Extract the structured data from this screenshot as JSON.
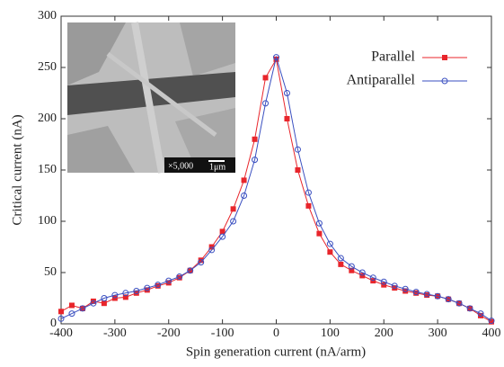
{
  "chart_data": {
    "type": "line",
    "xlabel": "Spin generation current (nA/arm)",
    "ylabel": "Critical current (nA)",
    "inset_labels": [
      "×5,000",
      "1μm"
    ],
    "x": [
      -400,
      -380,
      -360,
      -340,
      -320,
      -300,
      -280,
      -260,
      -240,
      -220,
      -200,
      -180,
      -160,
      -140,
      -120,
      -100,
      -80,
      -60,
      -40,
      -20,
      0,
      20,
      40,
      60,
      80,
      100,
      120,
      140,
      160,
      180,
      200,
      220,
      240,
      260,
      280,
      300,
      320,
      340,
      360,
      380,
      400
    ],
    "series": [
      {
        "name": "Parallel",
        "color": "#e8252b",
        "marker": "square",
        "values": [
          12,
          18,
          15,
          22,
          20,
          25,
          26,
          30,
          33,
          37,
          40,
          45,
          52,
          62,
          75,
          90,
          112,
          140,
          180,
          240,
          258,
          200,
          150,
          115,
          88,
          70,
          58,
          52,
          47,
          42,
          38,
          35,
          32,
          30,
          28,
          27,
          24,
          20,
          15,
          8,
          2
        ]
      },
      {
        "name": "Antiparallel",
        "color": "#3a4fc0",
        "marker": "circle",
        "values": [
          5,
          10,
          15,
          20,
          25,
          28,
          30,
          32,
          35,
          38,
          42,
          46,
          52,
          60,
          72,
          85,
          100,
          125,
          160,
          215,
          260,
          225,
          170,
          128,
          98,
          78,
          64,
          56,
          50,
          45,
          41,
          37,
          34,
          31,
          29,
          27,
          24,
          20,
          15,
          10,
          3
        ]
      }
    ],
    "xlim": [
      -400,
      400
    ],
    "ylim": [
      0,
      300
    ],
    "xticks": [
      -400,
      -300,
      -200,
      -100,
      0,
      100,
      200,
      300,
      400
    ],
    "yticks": [
      0,
      50,
      100,
      150,
      200,
      250,
      300
    ],
    "legend": "upper right"
  }
}
